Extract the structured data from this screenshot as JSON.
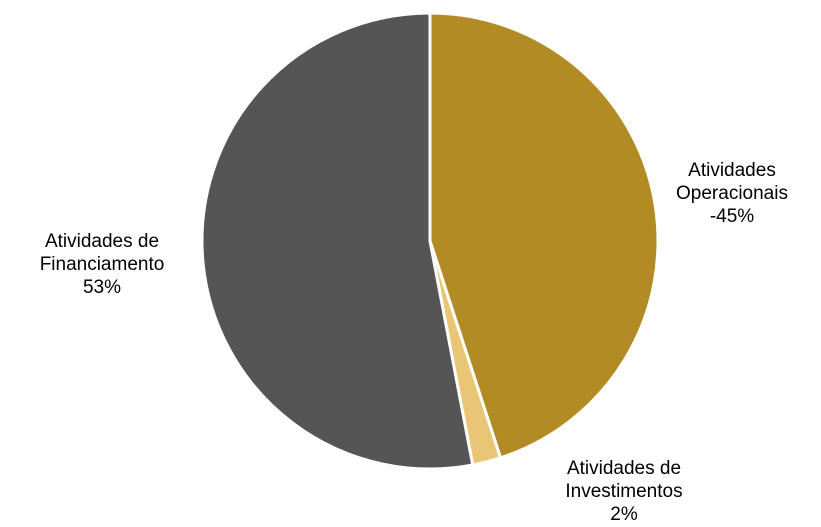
{
  "chart_data": {
    "type": "pie",
    "title": "",
    "start_angle_deg": 0,
    "direction": "clockwise",
    "colors": {
      "operacionais": "#b38b25",
      "investimentos": "#e8c675",
      "financiamento": "#555555"
    },
    "slices": [
      {
        "key": "operacionais",
        "label_lines": [
          "Atividades",
          "Operacionais",
          "-45%"
        ],
        "value": 45,
        "display_value": "-45%"
      },
      {
        "key": "investimentos",
        "label_lines": [
          "Atividades de",
          "Investimentos",
          "2%"
        ],
        "value": 2,
        "display_value": "2%"
      },
      {
        "key": "financiamento",
        "label_lines": [
          "Atividades de",
          "Financiamento",
          "53%"
        ],
        "value": 53,
        "display_value": "53%"
      }
    ]
  }
}
